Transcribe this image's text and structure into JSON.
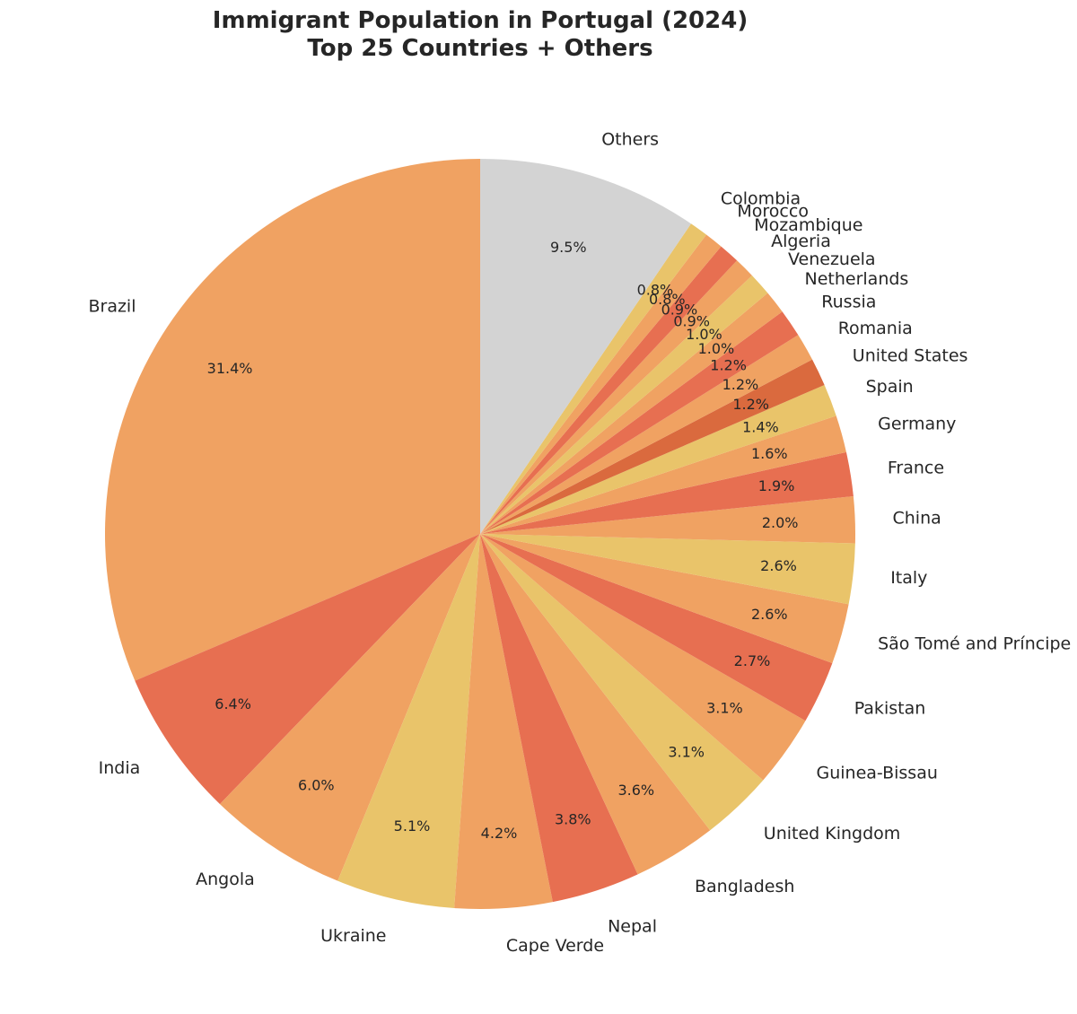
{
  "chart_data": {
    "type": "pie",
    "title": "Immigrant Population in Portugal (2024)",
    "subtitle": "Top 25 Countries + Others",
    "start_angle": "top, counterclockwise",
    "slices": [
      {
        "label": "Brazil",
        "value": 31.4,
        "pct": "31.4%",
        "color": "#F0A262"
      },
      {
        "label": "India",
        "value": 6.4,
        "pct": "6.4%",
        "color": "#E76F51"
      },
      {
        "label": "Angola",
        "value": 6.0,
        "pct": "6.0%",
        "color": "#F0A262"
      },
      {
        "label": "Ukraine",
        "value": 5.1,
        "pct": "5.1%",
        "color": "#E9C46A"
      },
      {
        "label": "Cape Verde",
        "value": 4.2,
        "pct": "4.2%",
        "color": "#F0A262"
      },
      {
        "label": "Nepal",
        "value": 3.8,
        "pct": "3.8%",
        "color": "#E76F51"
      },
      {
        "label": "Bangladesh",
        "value": 3.6,
        "pct": "3.6%",
        "color": "#F0A262"
      },
      {
        "label": "United Kingdom",
        "value": 3.1,
        "pct": "3.1%",
        "color": "#E9C46A"
      },
      {
        "label": "Guinea-Bissau",
        "value": 3.1,
        "pct": "3.1%",
        "color": "#F0A262"
      },
      {
        "label": "Pakistan",
        "value": 2.7,
        "pct": "2.7%",
        "color": "#E76F51"
      },
      {
        "label": "São Tomé and Príncipe",
        "value": 2.6,
        "pct": "2.6%",
        "color": "#F0A262"
      },
      {
        "label": "Italy",
        "value": 2.6,
        "pct": "2.6%",
        "color": "#E9C46A"
      },
      {
        "label": "China",
        "value": 2.0,
        "pct": "2.0%",
        "color": "#F0A262"
      },
      {
        "label": "France",
        "value": 1.9,
        "pct": "1.9%",
        "color": "#E76F51"
      },
      {
        "label": "Germany",
        "value": 1.6,
        "pct": "1.6%",
        "color": "#F0A262"
      },
      {
        "label": "Spain",
        "value": 1.4,
        "pct": "1.4%",
        "color": "#E9C46A"
      },
      {
        "label": "United States",
        "value": 1.2,
        "pct": "1.2%",
        "color": "#DA6A3E"
      },
      {
        "label": "Romania",
        "value": 1.2,
        "pct": "1.2%",
        "color": "#F0A262"
      },
      {
        "label": "Russia",
        "value": 1.2,
        "pct": "1.2%",
        "color": "#E76F51"
      },
      {
        "label": "Netherlands",
        "value": 1.0,
        "pct": "1.0%",
        "color": "#F0A262"
      },
      {
        "label": "Venezuela",
        "value": 1.0,
        "pct": "1.0%",
        "color": "#E9C46A"
      },
      {
        "label": "Algeria",
        "value": 0.9,
        "pct": "0.9%",
        "color": "#F0A262"
      },
      {
        "label": "Mozambique",
        "value": 0.9,
        "pct": "0.9%",
        "color": "#E76F51"
      },
      {
        "label": "Morocco",
        "value": 0.8,
        "pct": "0.8%",
        "color": "#F0A262"
      },
      {
        "label": "Colombia",
        "value": 0.8,
        "pct": "0.8%",
        "color": "#E9C46A"
      },
      {
        "label": "Others",
        "value": 9.5,
        "pct": "9.5%",
        "color": "#D3D3D3"
      }
    ]
  }
}
